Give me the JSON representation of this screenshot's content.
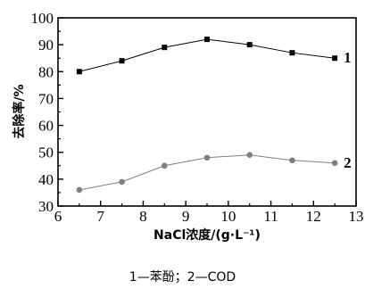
{
  "chart_data": {
    "type": "line",
    "xlabel": "NaCl浓度/(g·L⁻¹)",
    "ylabel": "去除率/%",
    "xlim": [
      6,
      13
    ],
    "ylim": [
      30,
      100
    ],
    "x_ticks": [
      "6",
      "7",
      "8",
      "9",
      "10",
      "11",
      "12",
      "13"
    ],
    "y_ticks": [
      "30",
      "40",
      "50",
      "60",
      "70",
      "80",
      "90",
      "100"
    ],
    "grid": false,
    "legend": "none",
    "series": [
      {
        "label": "1",
        "marker": "square",
        "color": "#000000",
        "x": [
          6.5,
          7.5,
          8.5,
          9.5,
          10.5,
          11.5,
          12.5
        ],
        "y": [
          80,
          84,
          89,
          92,
          90,
          87,
          85
        ]
      },
      {
        "label": "2",
        "marker": "circle",
        "color": "#808080",
        "x": [
          6.5,
          7.5,
          8.5,
          9.5,
          10.5,
          11.5,
          12.5
        ],
        "y": [
          36,
          39,
          45,
          48,
          49,
          47,
          46
        ]
      }
    ],
    "caption": "1—苯酚；2—COD"
  }
}
